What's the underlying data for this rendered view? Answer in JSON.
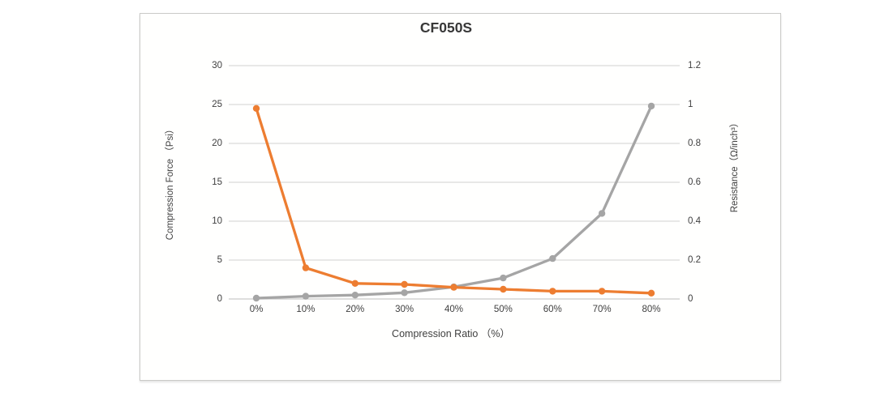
{
  "colors": {
    "background": "#ffffff",
    "panel_background": "#fffffe",
    "panel_border": "#c9c9c7",
    "gridline": "#d9d9d9",
    "axis_line": "#c9c9c9",
    "text": "#3f3f3f",
    "force_series": "#a5a5a5",
    "resistance_series": "#ed7d31"
  },
  "chart_data": {
    "type": "line",
    "title": "CF050S",
    "xlabel": "Compression Ratio （%）",
    "categories": [
      "0%",
      "10%",
      "20%",
      "30%",
      "40%",
      "50%",
      "60%",
      "70%",
      "80%"
    ],
    "grid": true,
    "legend_position": "none",
    "left_axis": {
      "label": "Compression Force （Psi）",
      "min": 0,
      "max": 30,
      "step": 5,
      "ticks": [
        "0",
        "5",
        "10",
        "15",
        "20",
        "25",
        "30"
      ]
    },
    "right_axis": {
      "label": "Resistance（Ω/inch³）",
      "min": 0,
      "max": 1.2,
      "step": 0.2,
      "ticks": [
        "0",
        "0.2",
        "0.4",
        "0.6",
        "0.8",
        "1",
        "1.2"
      ]
    },
    "series": [
      {
        "name": "Compression Force",
        "axis": "left",
        "color": "#a5a5a5",
        "values": [
          0.1,
          0.35,
          0.5,
          0.8,
          1.55,
          2.7,
          5.2,
          11,
          24.8
        ]
      },
      {
        "name": "Resistance",
        "axis": "right",
        "color": "#ed7d31",
        "values": [
          0.98,
          0.16,
          0.08,
          0.075,
          0.06,
          0.05,
          0.04,
          0.04,
          0.03
        ]
      }
    ]
  }
}
